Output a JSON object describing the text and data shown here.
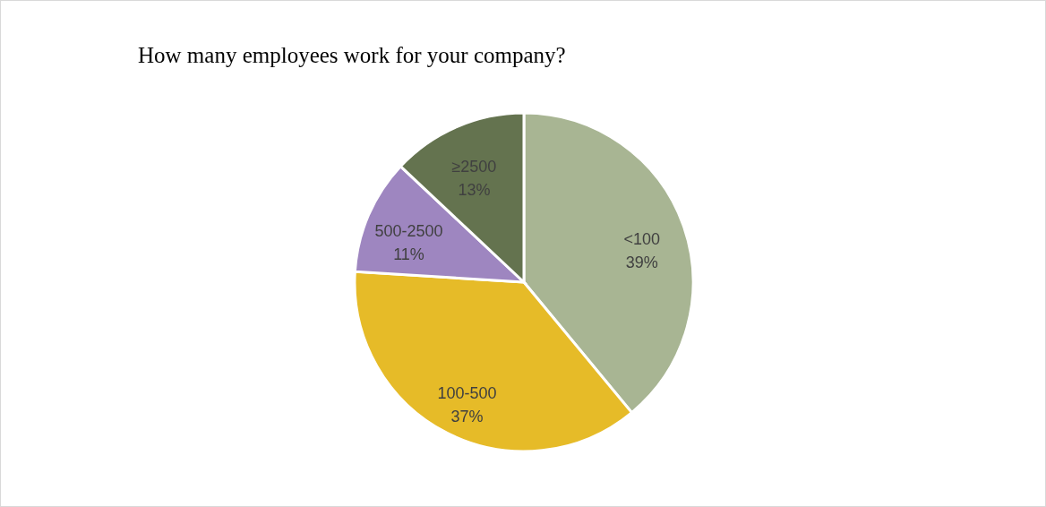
{
  "chart_data": {
    "type": "pie",
    "title": "How many employees work for your company?",
    "categories": [
      "<100",
      "100-500",
      "500-2500",
      "≥2500"
    ],
    "values": [
      39,
      37,
      11,
      13
    ],
    "value_labels": [
      "39%",
      "37%",
      "11%",
      "13%"
    ],
    "colors": [
      "#a8b593",
      "#e6bb28",
      "#9e86c0",
      "#64734f"
    ]
  }
}
